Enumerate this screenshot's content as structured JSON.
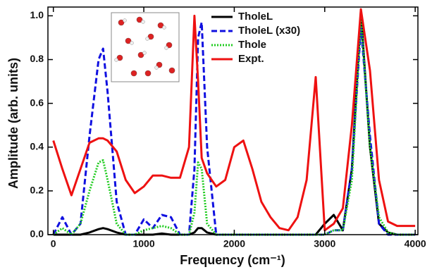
{
  "chart_data": {
    "type": "line",
    "x_label": "Frequency (cm⁻¹)",
    "y_label": "Amplitude (arb. units)",
    "x": [
      0,
      100,
      200,
      300,
      400,
      500,
      550,
      600,
      700,
      800,
      900,
      1000,
      1100,
      1200,
      1300,
      1400,
      1500,
      1560,
      1600,
      1640,
      1700,
      1800,
      1900,
      2000,
      2100,
      2200,
      2300,
      2400,
      2500,
      2600,
      2700,
      2800,
      2900,
      3000,
      3100,
      3200,
      3300,
      3400,
      3500,
      3600,
      3700,
      3800,
      3900,
      4000
    ],
    "series": [
      {
        "name": "TholeL",
        "color": "#000000",
        "dash": "solid",
        "values": [
          0,
          0,
          0,
          0,
          0.01,
          0.025,
          0.03,
          0.025,
          0.01,
          0,
          0,
          0,
          0,
          0.005,
          0,
          0,
          0,
          0.01,
          0.03,
          0.03,
          0.01,
          0,
          0,
          0,
          0,
          0,
          0,
          0,
          0,
          0,
          0,
          0,
          0,
          0.05,
          0.09,
          0.02,
          0.3,
          1.02,
          0.4,
          0.05,
          0.01,
          0,
          0,
          0
        ]
      },
      {
        "name": "TholeL (x30)",
        "color": "#1010e0",
        "dash": "dashed",
        "values": [
          0,
          0.08,
          0,
          0.05,
          0.45,
          0.8,
          0.85,
          0.65,
          0.15,
          0,
          0,
          0.07,
          0.03,
          0.09,
          0.08,
          0,
          0,
          0.3,
          0.9,
          0.97,
          0.4,
          0,
          0,
          0,
          0,
          0,
          0,
          0,
          0,
          0,
          0,
          0,
          0,
          0,
          0.02,
          0.02,
          0.3,
          0.95,
          0.45,
          0.05,
          0,
          0,
          0,
          0
        ]
      },
      {
        "name": "Thole",
        "color": "#22cc22",
        "dash": "dotted",
        "values": [
          0,
          0.03,
          0,
          0.05,
          0.2,
          0.33,
          0.34,
          0.25,
          0.05,
          0,
          0,
          0.02,
          0.03,
          0.04,
          0.03,
          0,
          0,
          0.1,
          0.33,
          0.3,
          0.05,
          0,
          0,
          0,
          0,
          0,
          0,
          0,
          0,
          0,
          0,
          0,
          0,
          0,
          0.02,
          0.02,
          0.25,
          1.0,
          0.4,
          0.08,
          0.01,
          0,
          0,
          0
        ]
      },
      {
        "name": "Expt.",
        "color": "#ee1111",
        "dash": "solid",
        "values": [
          0.43,
          0.3,
          0.18,
          0.3,
          0.42,
          0.44,
          0.44,
          0.43,
          0.38,
          0.25,
          0.19,
          0.22,
          0.27,
          0.27,
          0.26,
          0.26,
          0.4,
          1.0,
          0.7,
          0.35,
          0.28,
          0.22,
          0.25,
          0.4,
          0.43,
          0.3,
          0.15,
          0.08,
          0.03,
          0.02,
          0.08,
          0.25,
          0.72,
          0.02,
          0.05,
          0.12,
          0.5,
          1.03,
          0.75,
          0.25,
          0.06,
          0.04,
          0.04,
          0.04
        ]
      }
    ],
    "xlim": [
      -60,
      4030
    ],
    "ylim": [
      0,
      1.04
    ],
    "xticks": [
      0,
      1000,
      2000,
      3000,
      4000
    ],
    "yticks": [
      {
        "value": 0,
        "label": "0.0"
      },
      0.2,
      0.4,
      0.6,
      0.8,
      {
        "value": 1,
        "label": "1.0"
      }
    ],
    "legend": "upper center"
  }
}
